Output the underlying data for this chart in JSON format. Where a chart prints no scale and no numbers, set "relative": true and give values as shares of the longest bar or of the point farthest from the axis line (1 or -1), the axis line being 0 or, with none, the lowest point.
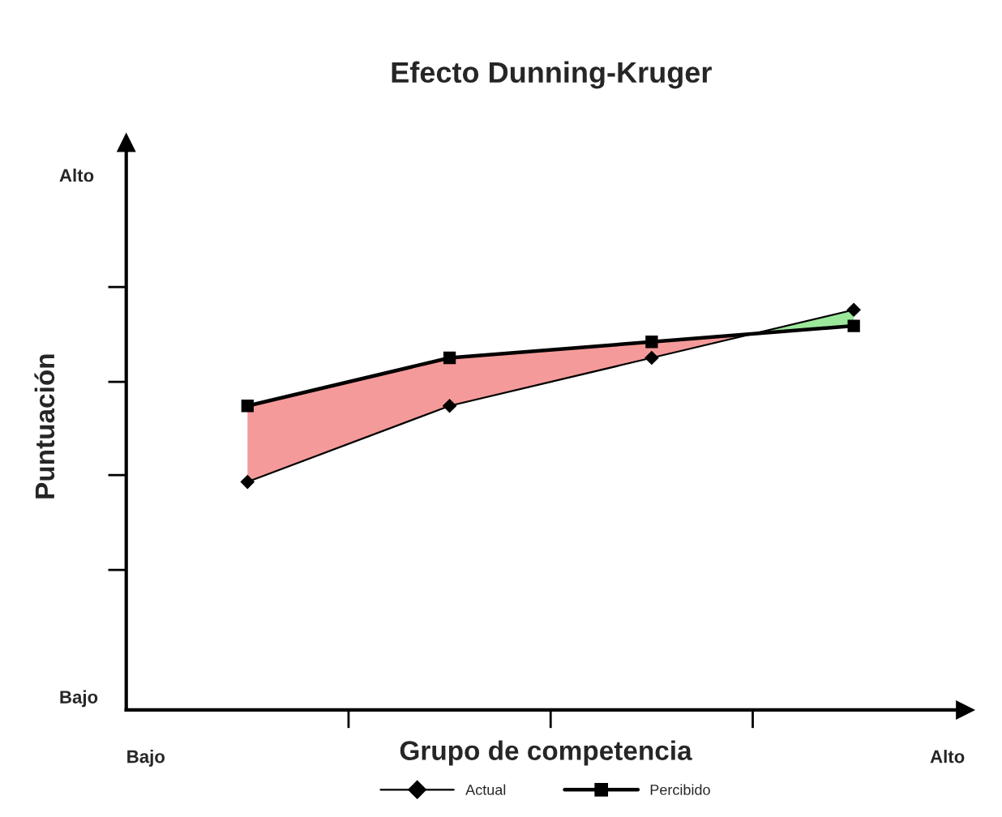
{
  "chart_data": {
    "type": "line",
    "title": "Efecto Dunning-Kruger",
    "xlabel": "Grupo de competencia",
    "ylabel": "Puntuación",
    "relative": true,
    "categories": [
      null,
      null,
      null,
      null
    ],
    "series": [
      {
        "name": "Actual",
        "color": "#000000",
        "values": [
          0.57,
          0.76,
          0.88,
          1.0
        ],
        "marker": "diamond"
      },
      {
        "name": "Percibido",
        "color": "#000000",
        "values": [
          0.76,
          0.88,
          0.92,
          0.96
        ],
        "marker": "square"
      }
    ],
    "annotations": [
      "Alto",
      "Bajo",
      "Bajo",
      "Alto"
    ],
    "legend": "bottom",
    "grid": false
  }
}
